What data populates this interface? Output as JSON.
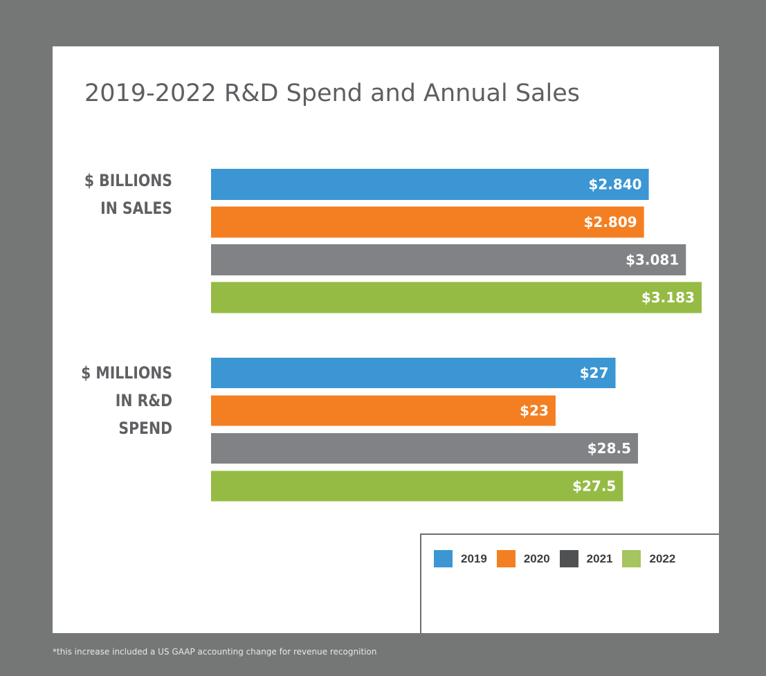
{
  "footnote": "*this increase included a US GAAP accounting change for revenue recognition",
  "legend": [
    {
      "label": "2019",
      "color": "#3b96d3"
    },
    {
      "label": "2020",
      "color": "#f37f22"
    },
    {
      "label": "2021",
      "color": "#808285"
    },
    {
      "label": "2022",
      "color": "#95bb45"
    }
  ],
  "chart_data": [
    {
      "type": "bar",
      "title": "2019-2022 R&D Spend and Annual Sales",
      "group_label": [
        "$ BILLIONS",
        "IN SALES"
      ],
      "categories": [
        "2019",
        "2020",
        "2021",
        "2022"
      ],
      "values": [
        2.84,
        2.809,
        3.081,
        3.183
      ],
      "data_labels": [
        "$2.840",
        "$2.809",
        "$3.081",
        "$3.183"
      ],
      "orientation": "horizontal",
      "legend": "bottom-right"
    },
    {
      "type": "bar",
      "group_label": [
        "$ MILLIONS",
        "IN R&D",
        "SPEND"
      ],
      "categories": [
        "2019",
        "2020",
        "2021",
        "2022"
      ],
      "values": [
        27,
        23,
        28.5,
        27.5
      ],
      "data_labels": [
        "$27",
        "$23",
        "$28.5",
        "$27.5"
      ],
      "orientation": "horizontal",
      "legend": "bottom-right"
    }
  ]
}
